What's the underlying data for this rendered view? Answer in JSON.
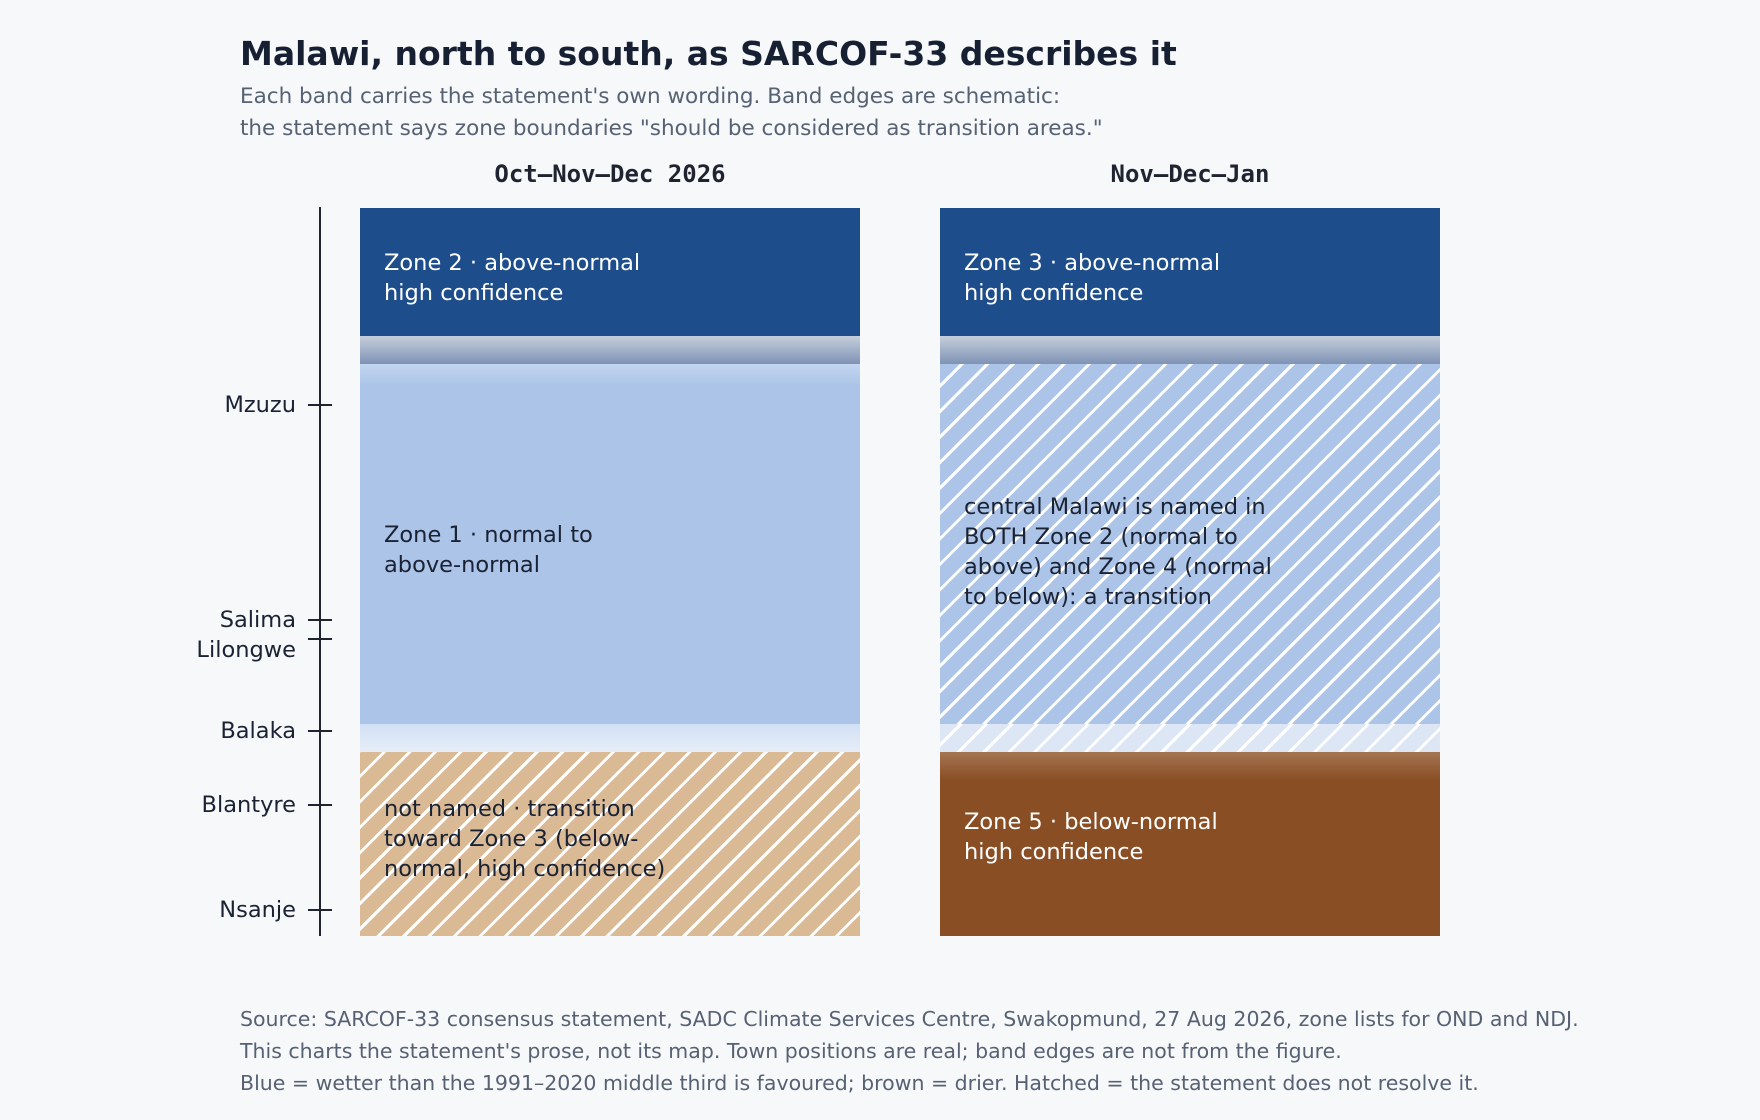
{
  "title": "Malawi, north to south, as SARCOF-33 describes it",
  "subtitle": [
    "Each band carries the statement's own wording. Band edges are schematic:",
    "the statement says zone boundaries \"should be considered as transition areas.\""
  ],
  "colors": {
    "dark_blue": "#1e4d8b",
    "light_blue": "#abc4e7",
    "tan": "#dab995",
    "dark_brown": "#8a4e25",
    "hatch": "#ffffff"
  },
  "towns": [
    "Mzuzu",
    "Salima",
    "Lilongwe",
    "Balaka",
    "Blantyre",
    "Nsanje"
  ],
  "columns": [
    {
      "title": "Oct–Nov–Dec 2026",
      "bands": [
        {
          "label": [
            "Zone 2 · above-normal",
            "high confidence"
          ],
          "style": "dark_blue"
        },
        {
          "label": [
            "Zone 1 · normal to",
            "above-normal"
          ],
          "style": "light_blue"
        },
        {
          "label": [
            "not named · transition",
            "toward Zone 3 (below-",
            "normal, high confidence)"
          ],
          "style": "tan_hatched"
        }
      ]
    },
    {
      "title": "Nov–Dec–Jan",
      "bands": [
        {
          "label": [
            "Zone 3 · above-normal",
            "high confidence"
          ],
          "style": "dark_blue"
        },
        {
          "label": [
            "central Malawi is named in",
            "BOTH Zone 2 (normal to",
            "above) and Zone 4 (normal",
            "to below): a transition"
          ],
          "style": "light_blue_hatched"
        },
        {
          "label": [
            "Zone 5 · below-normal",
            "high confidence"
          ],
          "style": "dark_brown"
        }
      ]
    }
  ],
  "footnotes": [
    "Source: SARCOF-33 consensus statement, SADC Climate Services Centre, Swakopmund, 27 Aug 2026, zone lists for OND and NDJ.",
    "This charts the statement's prose, not its map. Town positions are real; band edges are not from the figure.",
    "Blue = wetter than the 1991–2020 middle third is favoured; brown = drier. Hatched = the statement does not resolve it."
  ]
}
